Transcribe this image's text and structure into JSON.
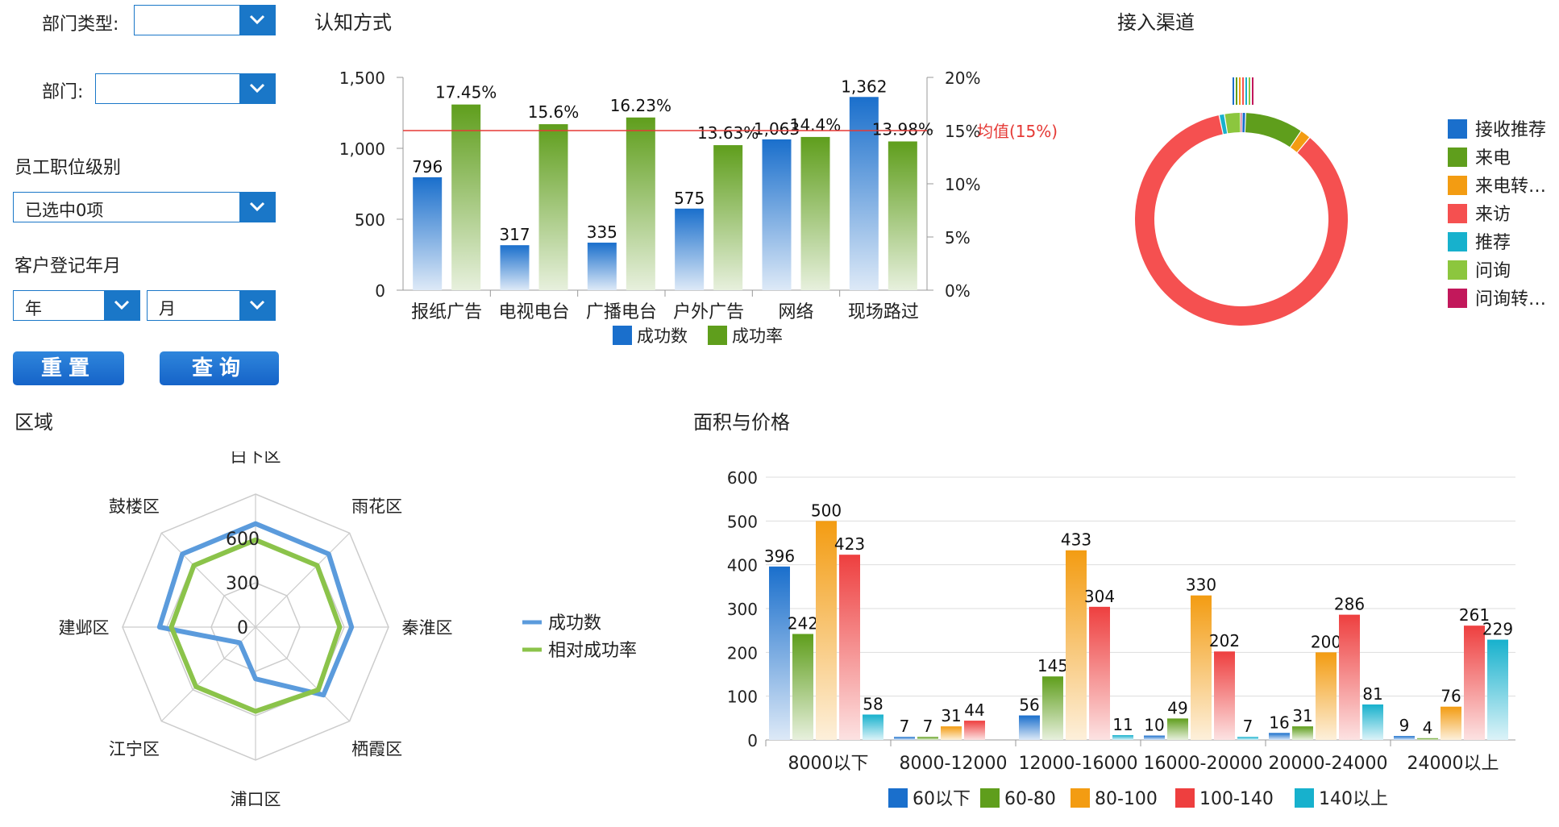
{
  "filters": {
    "dept_type_label": "部门类型:",
    "dept_type_value": "",
    "dept_label": "部门:",
    "dept_value": "",
    "level_label": "员工职位级别",
    "level_value": "已选中0项",
    "reg_month_label": "客户登记年月",
    "year_value": "年",
    "month_value": "月",
    "reset_label": "重置",
    "query_label": "查询"
  },
  "sections": {
    "cognition": "认知方式",
    "channel": "接入渠道",
    "region": "区域",
    "area_price": "面积与价格"
  },
  "chart_data": [
    {
      "type": "bar",
      "title": "认知方式",
      "categories": [
        "报纸广告",
        "电视电台",
        "广播电台",
        "户外广告",
        "网络",
        "现场路过"
      ],
      "series": [
        {
          "name": "成功数",
          "values": [
            796,
            317,
            335,
            575,
            1063,
            1362
          ],
          "labels": [
            "796",
            "317",
            "335",
            "575",
            "1,063",
            "1,362"
          ],
          "color": "#1a6fcc"
        },
        {
          "name": "成功率",
          "values": [
            17.45,
            15.6,
            16.23,
            13.63,
            14.4,
            13.98
          ],
          "labels": [
            "17.45%",
            "15.6%",
            "16.23%",
            "13.63%",
            "14.4%",
            "13.98%"
          ],
          "color": "#5f9e1c",
          "axis": "right"
        }
      ],
      "yticks_left": [
        "1,500",
        "1,000",
        "500",
        "0"
      ],
      "ylim_left": [
        0,
        1500
      ],
      "yticks_right": [
        "20%",
        "15%",
        "10%",
        "5%",
        "0%"
      ],
      "ylim_right": [
        0,
        20
      ],
      "mean_line": {
        "value": 15,
        "label": "均值(15%)",
        "color": "#e53935"
      }
    },
    {
      "type": "pie",
      "title": "接入渠道",
      "legend": [
        {
          "name": "接收推荐",
          "color": "#1a6fcc",
          "value": 2
        },
        {
          "name": "来电",
          "color": "#5f9e1c",
          "value": 33
        },
        {
          "name": "来电转…",
          "color": "#f39c12",
          "value": 6
        },
        {
          "name": "来访",
          "color": "#f55050",
          "value": 320
        },
        {
          "name": "推荐",
          "color": "#17b1cd",
          "value": 3
        },
        {
          "name": "问询",
          "color": "#8cc63e",
          "value": 9
        },
        {
          "name": "问询转…",
          "color": "#c2185b",
          "value": 1
        }
      ],
      "legend_position": "right"
    },
    {
      "type": "radar",
      "title": "区域",
      "axes": [
        "白下区",
        "雨花区",
        "秦淮区",
        "栖霞区",
        "浦口区",
        "江宁区",
        "建邺区",
        "鼓楼区"
      ],
      "ticks": [
        "600",
        "300",
        "0"
      ],
      "max": 900,
      "series": [
        {
          "name": "成功数",
          "color": "#5b9bdc",
          "values": [
            700,
            700,
            650,
            650,
            350,
            150,
            650,
            700
          ]
        },
        {
          "name": "相对成功率",
          "color": "#8bc34a",
          "values": [
            590,
            590,
            570,
            600,
            570,
            570,
            570,
            590
          ]
        }
      ],
      "legend_position": "right"
    },
    {
      "type": "bar",
      "title": "面积与价格",
      "categories": [
        "8000以下",
        "8000-12000",
        "12000-16000",
        "16000-20000",
        "20000-24000",
        "24000以上"
      ],
      "series": [
        {
          "name": "60以下",
          "color": "#1a6fcc",
          "values": [
            396,
            7,
            56,
            10,
            16,
            9
          ]
        },
        {
          "name": "60-80",
          "color": "#5f9e1c",
          "values": [
            242,
            7,
            145,
            49,
            31,
            4
          ]
        },
        {
          "name": "80-100",
          "color": "#f39c12",
          "values": [
            500,
            31,
            433,
            330,
            200,
            76
          ]
        },
        {
          "name": "100-140",
          "color": "#ee3f3f",
          "values": [
            423,
            44,
            304,
            202,
            286,
            261
          ]
        },
        {
          "name": "140以上",
          "color": "#17b1cd",
          "values": [
            58,
            0,
            11,
            7,
            81,
            229
          ]
        }
      ],
      "yticks": [
        "600",
        "500",
        "400",
        "300",
        "200",
        "100",
        "0"
      ],
      "ylim": [
        0,
        600
      ],
      "legend_position": "bottom"
    }
  ]
}
